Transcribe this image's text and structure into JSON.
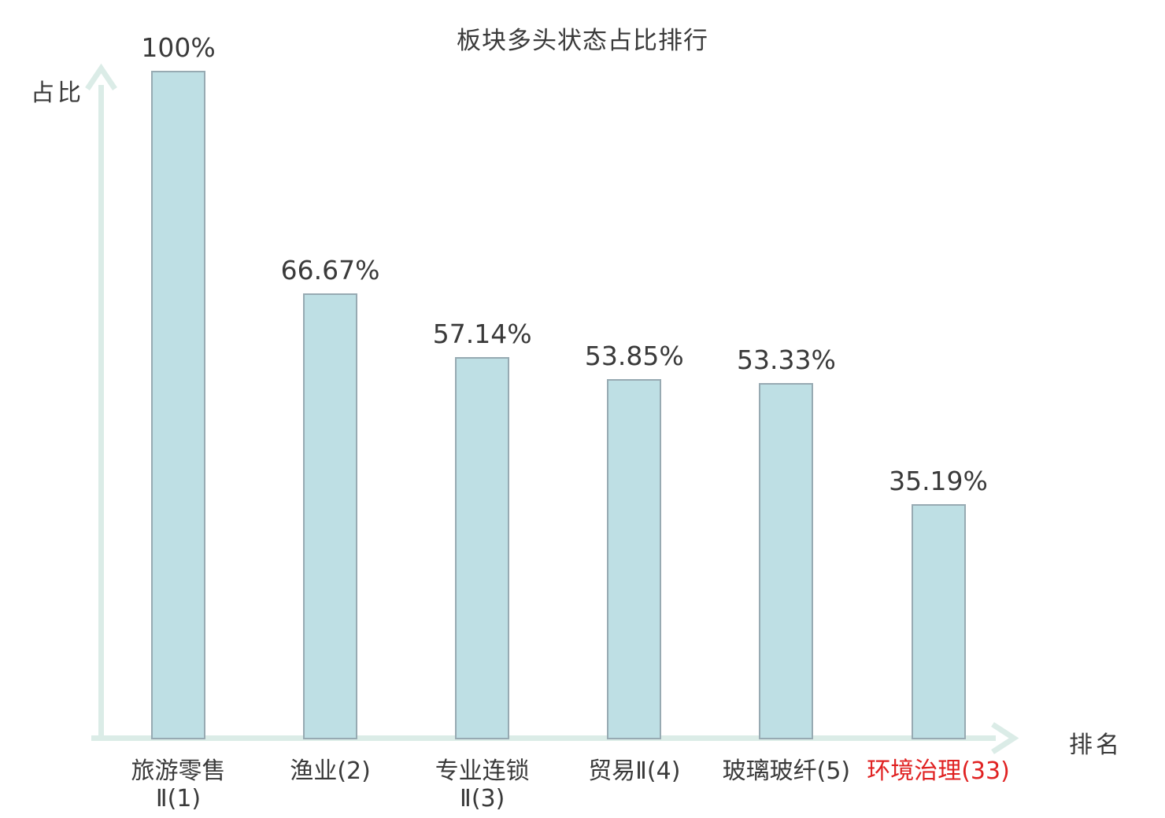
{
  "chart_data": {
    "type": "bar",
    "title": "板块多头状态占比排行",
    "xlabel": "排名",
    "ylabel": "占比",
    "ylim": [
      0,
      100
    ],
    "grid": false,
    "legend_position": "none",
    "categories": [
      "旅游零售Ⅱ(1)",
      "渔业(2)",
      "专业连锁Ⅱ(3)",
      "贸易Ⅱ(4)",
      "玻璃玻纤(5)",
      "环境治理(33)"
    ],
    "values": [
      100,
      66.67,
      57.14,
      53.85,
      53.33,
      35.19
    ],
    "bars": [
      {
        "label_lines": [
          "旅游零售",
          "Ⅱ(1)"
        ],
        "value": 100,
        "value_label": "100%",
        "highlight": false
      },
      {
        "label_lines": [
          "渔业(2)"
        ],
        "value": 66.67,
        "value_label": "66.67%",
        "highlight": false
      },
      {
        "label_lines": [
          "专业连锁",
          "Ⅱ(3)"
        ],
        "value": 57.14,
        "value_label": "57.14%",
        "highlight": false
      },
      {
        "label_lines": [
          "贸易Ⅱ(4)"
        ],
        "value": 53.85,
        "value_label": "53.85%",
        "highlight": false
      },
      {
        "label_lines": [
          "玻璃玻纤(5)"
        ],
        "value": 53.33,
        "value_label": "53.33%",
        "highlight": false
      },
      {
        "label_lines": [
          "环境治理(33)"
        ],
        "value": 35.19,
        "value_label": "35.19%",
        "highlight": true
      }
    ],
    "colors": {
      "bar_fill": "#bedfe4",
      "bar_border": "#97aab2",
      "axis": "#dbece7",
      "text": "#3a3a3a",
      "highlight_text": "#e02222",
      "background": "#ffffff"
    }
  }
}
